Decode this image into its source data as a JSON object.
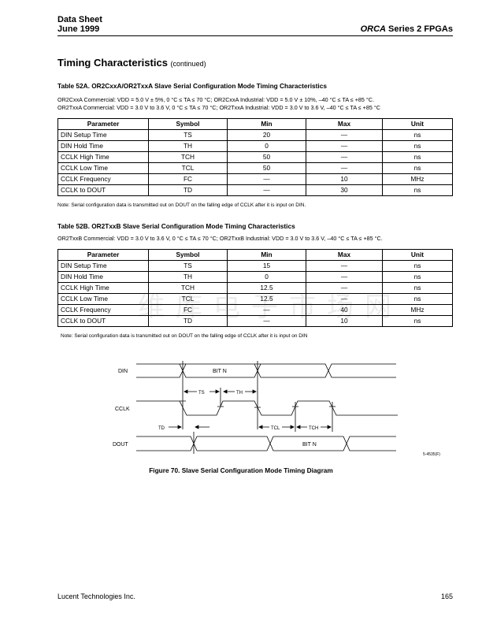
{
  "header": {
    "line1": "Data Sheet",
    "line2": "June 1999",
    "right_italic": "ORCA",
    "right": " Series 2 FPGAs"
  },
  "section": {
    "title": "Timing Characteristics",
    "suffix": "(continued)"
  },
  "tableA": {
    "title": "Table 52A. OR2CxxA/OR2TxxA Slave Serial Configuration Mode Timing Characteristics",
    "cond1": "OR2CxxA Commercial: VDD = 5.0 V ± 5%, 0 °C ≤ TA ≤ 70 °C; OR2CxxA Industrial: VDD = 5.0 V ± 10%, –40 °C ≤ TA ≤ +85 °C.",
    "cond2": "OR2TxxA Commercial: VDD = 3.0 V to 3.6 V, 0 °C ≤ TA ≤ 70 °C; OR2TxxA Industrial: VDD = 3.0 V to 3.6 V, –40 °C ≤ TA ≤ +85 °C",
    "headers": [
      "Parameter",
      "Symbol",
      "Min",
      "Max",
      "Unit"
    ],
    "rows": [
      [
        "DIN Setup Time",
        "TS",
        "20",
        "—",
        "ns"
      ],
      [
        "DIN Hold Time",
        "TH",
        "0",
        "—",
        "ns"
      ],
      [
        "CCLK High Time",
        "TCH",
        "50",
        "—",
        "ns"
      ],
      [
        "CCLK Low Time",
        "TCL",
        "50",
        "—",
        "ns"
      ],
      [
        "CCLK Frequency",
        "FC",
        "—",
        "10",
        "MHz"
      ],
      [
        "CCLK to DOUT",
        "TD",
        "—",
        "30",
        "ns"
      ]
    ],
    "note": "Note: Serial configuration data is transmitted out on DOUT on the falling edge of CCLK after it is input on DIN."
  },
  "tableB": {
    "title": "Table 52B. OR2TxxB Slave Serial Configuration Mode Timing Characteristics",
    "cond1": "OR2TxxB Commercial: VDD = 3.0 V to 3.6 V, 0 °C ≤ TA ≤ 70 °C; OR2TxxB Industrial: VDD = 3.0 V to 3.6 V, –40 °C ≤ TA ≤ +85 °C.",
    "headers": [
      "Parameter",
      "Symbol",
      "Min",
      "Max",
      "Unit"
    ],
    "rows": [
      [
        "DIN Setup Time",
        "TS",
        "15",
        "—",
        "ns"
      ],
      [
        "DIN Hold Time",
        "TH",
        "0",
        "—",
        "ns"
      ],
      [
        "CCLK High Time",
        "TCH",
        "12.5",
        "—",
        "ns"
      ],
      [
        "CCLK Low Time",
        "TCL",
        "12.5",
        "—",
        "ns"
      ],
      [
        "CCLK Frequency",
        "FC",
        "—",
        "40",
        "MHz"
      ],
      [
        "CCLK to DOUT",
        "TD",
        "—",
        "10",
        "ns"
      ]
    ],
    "note": "Note: Serial configuration data is transmitted out on DOUT on the falling edge of CCLK after it is input on DIN"
  },
  "watermark": "维库电子市场网",
  "figure": {
    "signals": [
      "DIN",
      "CCLK",
      "DOUT"
    ],
    "bit": "BIT N",
    "ts": "TS",
    "th": "TH",
    "td": "TD",
    "tcl": "TCL",
    "tch": "TCH",
    "id": "5-4535(F)",
    "caption": "Figure 70. Slave Serial Configuration Mode Timing Diagram"
  },
  "footer": {
    "company": "Lucent Technologies Inc.",
    "page": "165"
  }
}
